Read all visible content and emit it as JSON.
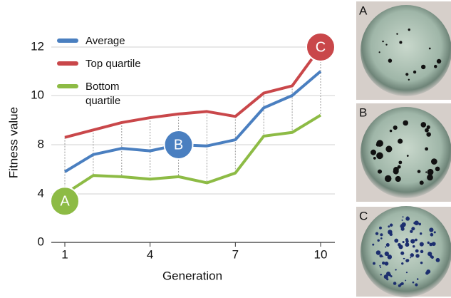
{
  "chart_data": {
    "type": "line",
    "xlabel": "Generation",
    "ylabel": "Fitness value",
    "x": [
      1,
      2,
      3,
      4,
      5,
      6,
      7,
      8,
      9,
      10
    ],
    "xlim": [
      1,
      10
    ],
    "xticks": [
      1,
      4,
      7,
      10
    ],
    "ylim": [
      0,
      13.3
    ],
    "yticks": [
      0,
      4,
      8,
      10,
      12
    ],
    "grid": true,
    "legend": "upper left",
    "series": [
      {
        "name": "Average",
        "color": "#4a7fc0",
        "values": [
          5.8,
          7.2,
          7.7,
          7.5,
          8.0,
          7.9,
          8.2,
          9.5,
          10.0,
          11.0
        ]
      },
      {
        "name": "Top quartile",
        "color": "#c9474a",
        "values": [
          8.3,
          8.6,
          8.9,
          9.1,
          9.25,
          9.35,
          9.15,
          10.1,
          10.4,
          12.0
        ]
      },
      {
        "name": "Bottom quartile",
        "color": "#8dbb45",
        "values": [
          4.0,
          5.5,
          5.4,
          5.2,
          5.4,
          4.9,
          5.7,
          8.35,
          8.5,
          9.2
        ]
      }
    ],
    "annotations": [
      {
        "text": "A",
        "x": 1,
        "y": 3.4,
        "color": "#8dbb45"
      },
      {
        "text": "B",
        "x": 5,
        "y": 8.0,
        "color": "#4a7fc0"
      },
      {
        "text": "C",
        "x": 10,
        "y": 12.0,
        "color": "#c9474a"
      }
    ]
  },
  "panels": [
    "A",
    "B",
    "C"
  ]
}
